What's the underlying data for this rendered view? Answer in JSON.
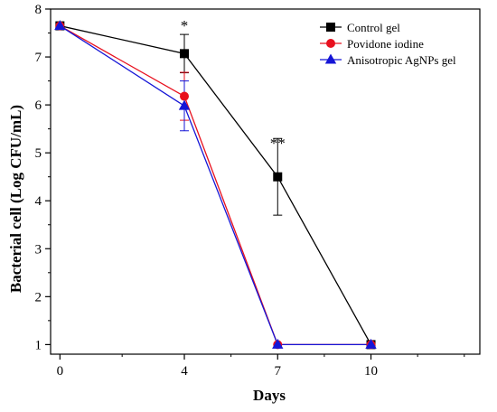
{
  "chart_data": {
    "type": "line",
    "title": "",
    "xlabel": "Days",
    "ylabel": "Bacterial cell (Log CFU/mL)",
    "x": [
      0,
      4,
      7,
      10
    ],
    "x_ticks": [
      "0",
      "4",
      "7",
      "10"
    ],
    "xlim": [
      -0.3,
      13.5
    ],
    "ylim": [
      0.8,
      8
    ],
    "y_ticks": [
      "1",
      "2",
      "3",
      "4",
      "5",
      "6",
      "7",
      "8"
    ],
    "grid": false,
    "legend_position": "top-right",
    "series": [
      {
        "name": "Control gel",
        "color": "#000000",
        "marker": "square",
        "values": [
          7.65,
          7.07,
          4.5,
          1.0
        ],
        "errors": [
          0.0,
          0.4,
          0.8,
          0.0
        ]
      },
      {
        "name": "Povidone iodine",
        "color": "#e8101e",
        "marker": "circle",
        "values": [
          7.65,
          6.18,
          1.0,
          1.0
        ],
        "errors": [
          0.0,
          0.5,
          0.0,
          0.0
        ]
      },
      {
        "name": "Anisotropic AgNPs gel",
        "color": "#1515d6",
        "marker": "triangle",
        "values": [
          7.65,
          5.98,
          1.0,
          1.0
        ],
        "errors": [
          0.0,
          0.52,
          0.0,
          0.0
        ]
      }
    ],
    "annotations": [
      {
        "x": 4,
        "y": 7.55,
        "text": "*"
      },
      {
        "x": 7,
        "y": 5.1,
        "text": "**"
      }
    ]
  }
}
